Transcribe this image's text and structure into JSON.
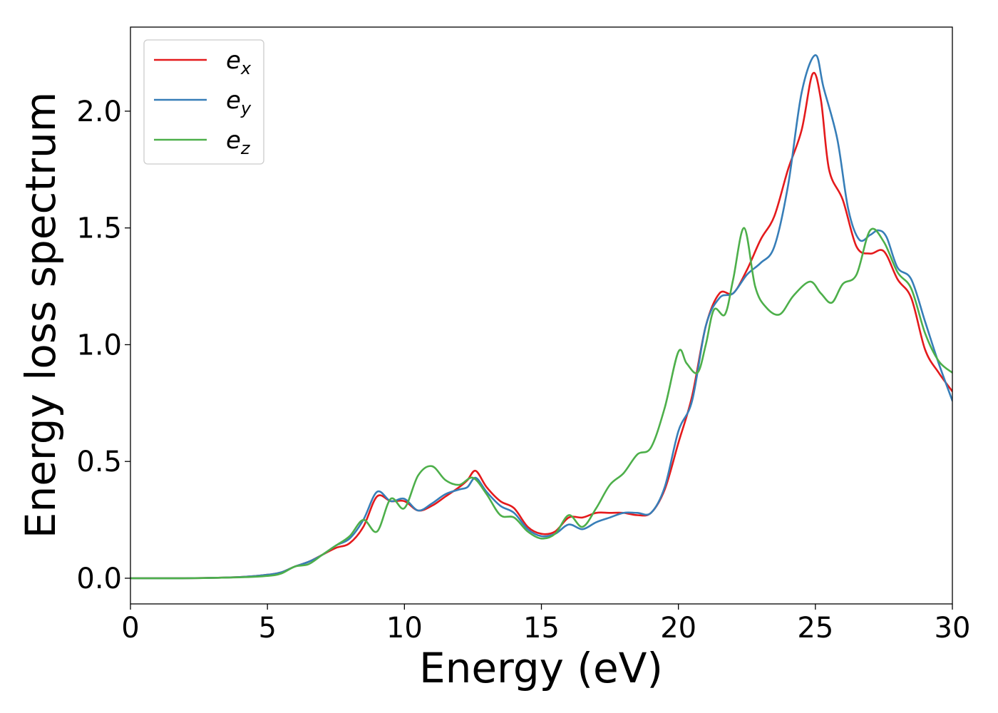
{
  "chart_data": {
    "type": "line",
    "title": "",
    "xlabel": "Energy (eV)",
    "ylabel": "Energy loss spectrum",
    "xlim": [
      0,
      30
    ],
    "ylim": [
      -0.11,
      2.36
    ],
    "xticks": [
      0,
      5,
      10,
      15,
      20,
      25,
      30
    ],
    "xtick_labels": [
      "0",
      "5",
      "10",
      "15",
      "20",
      "25",
      "30"
    ],
    "yticks": [
      0.0,
      0.5,
      1.0,
      1.5,
      2.0
    ],
    "ytick_labels": [
      "0.0",
      "0.5",
      "1.0",
      "1.5",
      "2.0"
    ],
    "grid": false,
    "legend_position": "top-left",
    "series": [
      {
        "name": "e_x",
        "legend_main": "e",
        "legend_sub": "x",
        "color": "#e41a1c",
        "x": [
          0,
          2,
          4,
          5,
          5.5,
          6,
          6.5,
          7,
          7.5,
          8,
          8.5,
          9,
          9.5,
          10,
          10.5,
          11,
          11.5,
          12,
          12.3,
          12.6,
          13,
          13.5,
          14,
          14.5,
          15,
          15.5,
          16,
          16.5,
          17,
          17.5,
          18,
          18.5,
          19,
          19.5,
          20,
          20.5,
          21,
          21.5,
          22,
          22.5,
          23,
          23.5,
          24,
          24.5,
          24.9,
          25.2,
          25.5,
          26,
          26.5,
          27,
          27.5,
          28,
          28.5,
          29,
          29.5,
          30
        ],
        "y": [
          0.0,
          0.0,
          0.005,
          0.015,
          0.025,
          0.05,
          0.07,
          0.1,
          0.13,
          0.15,
          0.22,
          0.35,
          0.33,
          0.33,
          0.29,
          0.31,
          0.35,
          0.39,
          0.42,
          0.46,
          0.39,
          0.33,
          0.3,
          0.22,
          0.19,
          0.2,
          0.26,
          0.26,
          0.28,
          0.28,
          0.28,
          0.27,
          0.28,
          0.38,
          0.58,
          0.78,
          1.08,
          1.22,
          1.22,
          1.32,
          1.45,
          1.55,
          1.75,
          1.92,
          2.16,
          2.05,
          1.75,
          1.62,
          1.42,
          1.39,
          1.4,
          1.28,
          1.2,
          0.98,
          0.88,
          0.8
        ]
      },
      {
        "name": "e_y",
        "legend_main": "e",
        "legend_sub": "y",
        "color": "#377eb8",
        "x": [
          0,
          2,
          4,
          5,
          5.5,
          6,
          6.5,
          7,
          7.5,
          8,
          8.5,
          9,
          9.5,
          10,
          10.5,
          11,
          11.5,
          12,
          12.3,
          12.6,
          13,
          13.5,
          14,
          14.5,
          15,
          15.5,
          16,
          16.5,
          17,
          17.5,
          18,
          18.5,
          19,
          19.5,
          20,
          20.5,
          21,
          21.5,
          22,
          22.5,
          23,
          23.5,
          24,
          24.5,
          25,
          25.3,
          25.8,
          26.2,
          26.6,
          27,
          27.3,
          27.6,
          28,
          28.5,
          29,
          29.5,
          30
        ],
        "y": [
          0.0,
          0.0,
          0.005,
          0.015,
          0.025,
          0.05,
          0.07,
          0.1,
          0.14,
          0.17,
          0.25,
          0.37,
          0.33,
          0.34,
          0.29,
          0.32,
          0.36,
          0.38,
          0.39,
          0.43,
          0.37,
          0.31,
          0.28,
          0.21,
          0.18,
          0.19,
          0.23,
          0.21,
          0.24,
          0.26,
          0.28,
          0.28,
          0.28,
          0.39,
          0.63,
          0.76,
          1.08,
          1.2,
          1.22,
          1.3,
          1.35,
          1.42,
          1.68,
          2.08,
          2.24,
          2.1,
          1.88,
          1.58,
          1.45,
          1.47,
          1.49,
          1.46,
          1.33,
          1.28,
          1.1,
          0.92,
          0.76
        ]
      },
      {
        "name": "e_z",
        "legend_main": "e",
        "legend_sub": "z",
        "color": "#4daf4a",
        "x": [
          0,
          2,
          4,
          5,
          5.5,
          6,
          6.5,
          7,
          7.5,
          8,
          8.5,
          9,
          9.5,
          10,
          10.5,
          11,
          11.5,
          12,
          12.5,
          13,
          13.5,
          14,
          14.5,
          15,
          15.5,
          16,
          16.5,
          17,
          17.5,
          18,
          18.5,
          19,
          19.5,
          20,
          20.3,
          20.7,
          21,
          21.3,
          21.7,
          22,
          22.4,
          22.8,
          23.2,
          23.7,
          24.2,
          24.8,
          25.2,
          25.6,
          26,
          26.5,
          27,
          27.5,
          28,
          28.5,
          29,
          29.5,
          30
        ],
        "y": [
          0.0,
          0.0,
          0.004,
          0.01,
          0.02,
          0.05,
          0.06,
          0.1,
          0.14,
          0.18,
          0.25,
          0.2,
          0.34,
          0.3,
          0.44,
          0.48,
          0.42,
          0.4,
          0.43,
          0.36,
          0.27,
          0.26,
          0.2,
          0.17,
          0.19,
          0.27,
          0.22,
          0.3,
          0.4,
          0.45,
          0.53,
          0.56,
          0.73,
          0.97,
          0.92,
          0.88,
          1.0,
          1.15,
          1.13,
          1.28,
          1.5,
          1.25,
          1.16,
          1.13,
          1.21,
          1.27,
          1.22,
          1.18,
          1.26,
          1.3,
          1.49,
          1.44,
          1.31,
          1.24,
          1.05,
          0.93,
          0.88
        ]
      }
    ]
  }
}
